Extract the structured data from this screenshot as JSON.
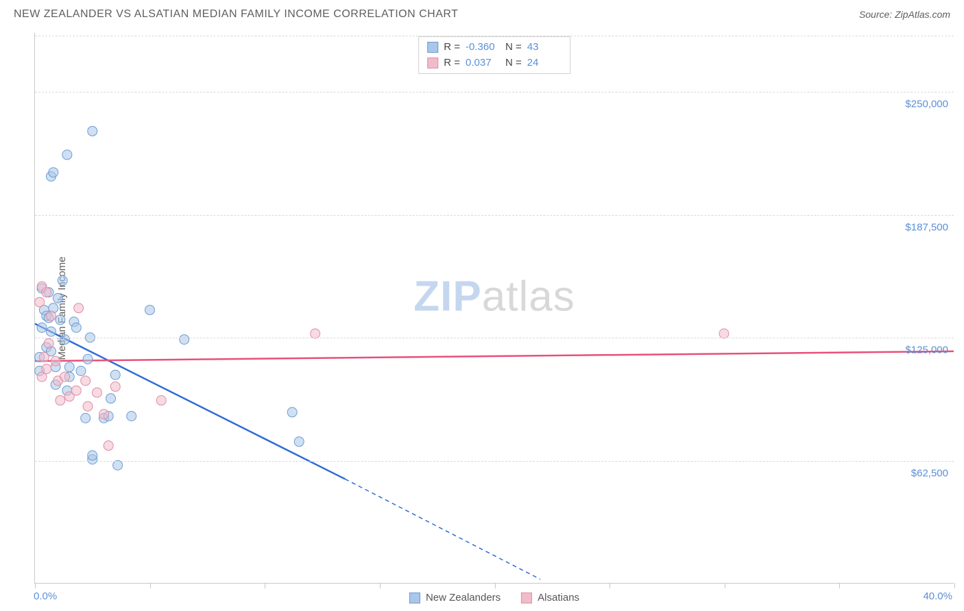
{
  "title": "NEW ZEALANDER VS ALSATIAN MEDIAN FAMILY INCOME CORRELATION CHART",
  "source": "Source: ZipAtlas.com",
  "watermark": {
    "prefix": "ZIP",
    "suffix": "atlas"
  },
  "chart": {
    "type": "scatter",
    "y_axis_title": "Median Family Income",
    "xlim": [
      0,
      40
    ],
    "ylim": [
      0,
      280000
    ],
    "x_ticks": [
      0,
      5,
      10,
      15,
      20,
      25,
      30,
      35,
      40
    ],
    "x_tick_labels": {
      "0": "0.0%",
      "40": "40.0%"
    },
    "y_gridlines": [
      62500,
      125000,
      187500,
      250000
    ],
    "y_labels": [
      "$62,500",
      "$125,000",
      "$187,500",
      "$250,000"
    ],
    "grid_color": "#d9d9d9",
    "axis_color": "#c8c8c8",
    "label_color": "#5a8fd6",
    "background_color": "#ffffff",
    "series": [
      {
        "name": "New Zealanders",
        "fill_color": "#aac6e8",
        "stroke_color": "#6a9bd4",
        "line_color": "#2e6bd6",
        "marker_radius": 7,
        "marker_opacity": 0.55,
        "R": "-0.360",
        "N": "43",
        "trend": {
          "x1": 0,
          "y1": 132000,
          "x2_solid": 13.5,
          "y2_solid": 53000,
          "x2_dash": 22,
          "y2_dash": 2000
        },
        "points": [
          [
            0.2,
            115000
          ],
          [
            0.2,
            108000
          ],
          [
            0.3,
            150000
          ],
          [
            0.3,
            130000
          ],
          [
            0.4,
            139000
          ],
          [
            0.5,
            136000
          ],
          [
            0.5,
            120000
          ],
          [
            0.6,
            148000
          ],
          [
            0.6,
            135000
          ],
          [
            0.7,
            128000
          ],
          [
            0.7,
            118000
          ],
          [
            0.8,
            140000
          ],
          [
            0.9,
            101000
          ],
          [
            0.9,
            110000
          ],
          [
            1.0,
            145000
          ],
          [
            1.1,
            134000
          ],
          [
            1.2,
            154000
          ],
          [
            1.3,
            124000
          ],
          [
            1.4,
            98000
          ],
          [
            1.5,
            105000
          ],
          [
            1.5,
            110000
          ],
          [
            1.7,
            133000
          ],
          [
            1.8,
            130000
          ],
          [
            2.0,
            108000
          ],
          [
            2.2,
            84000
          ],
          [
            2.3,
            114000
          ],
          [
            2.4,
            125000
          ],
          [
            2.5,
            63000
          ],
          [
            2.5,
            65000
          ],
          [
            3.0,
            84000
          ],
          [
            3.2,
            85000
          ],
          [
            3.3,
            94000
          ],
          [
            3.5,
            106000
          ],
          [
            3.6,
            60000
          ],
          [
            4.2,
            85000
          ],
          [
            5.0,
            139000
          ],
          [
            6.5,
            124000
          ],
          [
            11.2,
            87000
          ],
          [
            11.5,
            72000
          ],
          [
            0.7,
            207000
          ],
          [
            0.8,
            209000
          ],
          [
            1.4,
            218000
          ],
          [
            2.5,
            230000
          ]
        ]
      },
      {
        "name": "Alsatians",
        "fill_color": "#f1bcca",
        "stroke_color": "#e28ba3",
        "line_color": "#e84f7a",
        "marker_radius": 7,
        "marker_opacity": 0.55,
        "R": "0.037",
        "N": "24",
        "trend": {
          "x1": 0,
          "y1": 113000,
          "x2_solid": 40,
          "y2_solid": 118000
        },
        "points": [
          [
            0.2,
            143000
          ],
          [
            0.3,
            151000
          ],
          [
            0.3,
            105000
          ],
          [
            0.4,
            115000
          ],
          [
            0.5,
            109000
          ],
          [
            0.6,
            122000
          ],
          [
            0.7,
            136000
          ],
          [
            0.9,
            113000
          ],
          [
            1.0,
            103000
          ],
          [
            1.1,
            93000
          ],
          [
            1.3,
            105000
          ],
          [
            1.5,
            95000
          ],
          [
            1.8,
            98000
          ],
          [
            1.9,
            140000
          ],
          [
            2.2,
            103000
          ],
          [
            2.3,
            90000
          ],
          [
            2.7,
            97000
          ],
          [
            3.0,
            86000
          ],
          [
            3.2,
            70000
          ],
          [
            3.5,
            100000
          ],
          [
            5.5,
            93000
          ],
          [
            12.2,
            127000
          ],
          [
            30.0,
            127000
          ],
          [
            0.5,
            148000
          ]
        ]
      }
    ]
  },
  "legend": {
    "items": [
      {
        "label": "New Zealanders",
        "fill": "#aac6e8",
        "stroke": "#6a9bd4"
      },
      {
        "label": "Alsatians",
        "fill": "#f1bcca",
        "stroke": "#e28ba3"
      }
    ]
  }
}
